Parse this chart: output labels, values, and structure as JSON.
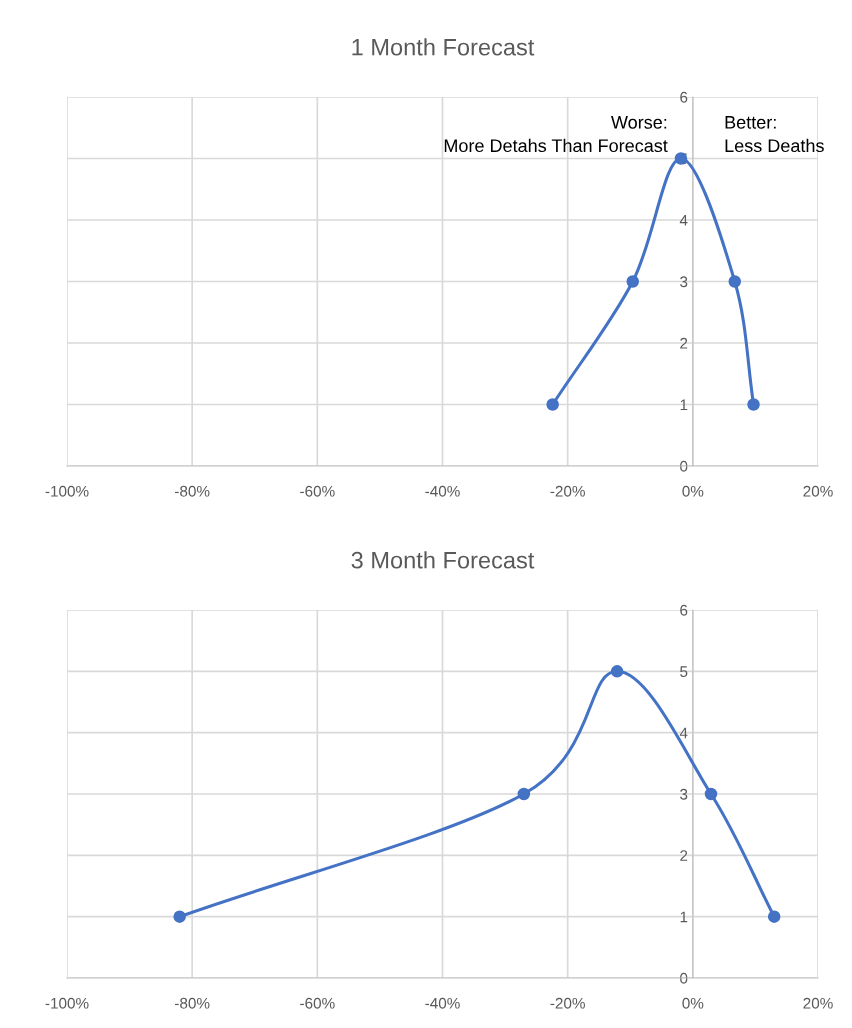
{
  "chart_data": [
    {
      "type": "line",
      "title": "1 Month Forecast",
      "marker": "circle",
      "grid": true,
      "line_style": "solid",
      "series": [
        {
          "color": "#4472c4",
          "x": [
            -22.4,
            -9.6,
            -1.9,
            6.7,
            9.7
          ],
          "values": [
            1,
            3,
            5,
            3,
            1
          ]
        }
      ],
      "xlim": [
        -100,
        20
      ],
      "ylim": [
        0,
        6
      ],
      "yticks": [
        0,
        1,
        2,
        3,
        4,
        5,
        6
      ],
      "xticks": [
        {
          "value": -100,
          "label": "-100%"
        },
        {
          "value": -80,
          "label": "-80%"
        },
        {
          "value": -60,
          "label": "-60%"
        },
        {
          "value": -40,
          "label": "-40%"
        },
        {
          "value": -20,
          "label": "-20%"
        },
        {
          "value": 0,
          "label": "0%"
        },
        {
          "value": 20,
          "label": "20%"
        }
      ],
      "annotations": [
        "Worse:\nMore Detahs Than Forecast",
        "Better:\nLess Deaths"
      ]
    },
    {
      "type": "line",
      "title": "3 Month Forecast",
      "marker": "circle",
      "grid": true,
      "line_style": "solid",
      "series": [
        {
          "color": "#4472c4",
          "x": [
            -82,
            -27,
            -12.1,
            2.9,
            13
          ],
          "values": [
            1,
            3,
            5,
            3,
            1
          ]
        }
      ],
      "xlim": [
        -100,
        20
      ],
      "ylim": [
        0,
        6
      ],
      "yticks": [
        0,
        1,
        2,
        3,
        4,
        5,
        6
      ],
      "xticks": [
        {
          "value": -100,
          "label": "-100%"
        },
        {
          "value": -80,
          "label": "-80%"
        },
        {
          "value": -60,
          "label": "-60%"
        },
        {
          "value": -40,
          "label": "-40%"
        },
        {
          "value": -20,
          "label": "-20%"
        },
        {
          "value": 0,
          "label": "0%"
        },
        {
          "value": 20,
          "label": "20%"
        }
      ]
    }
  ]
}
